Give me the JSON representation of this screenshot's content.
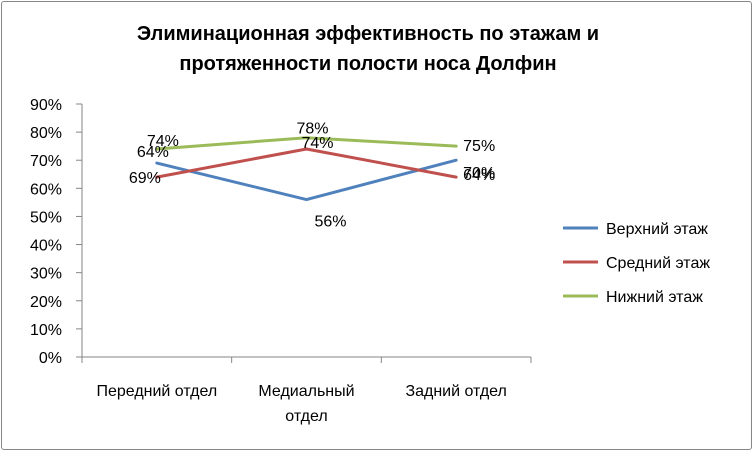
{
  "chart_data": {
    "type": "line",
    "title_lines": [
      "Элиминационная эффективность по этажам и",
      "протяженности полости носа Долфин"
    ],
    "categories": [
      [
        "Передний отдел"
      ],
      [
        "Медиальный",
        "отдел"
      ],
      [
        "Задний отдел"
      ]
    ],
    "y_ticks": [
      "0%",
      "10%",
      "20%",
      "30%",
      "40%",
      "50%",
      "60%",
      "70%",
      "80%",
      "90%"
    ],
    "ylim": [
      0,
      90
    ],
    "grid": false,
    "legend_position": "right",
    "series": [
      {
        "name": "Верхний этаж",
        "color": "#4F81BD",
        "values": [
          69,
          56,
          70
        ],
        "labels": [
          "69%",
          "56%",
          "70%"
        ]
      },
      {
        "name": "Средний этаж",
        "color": "#C0504D",
        "values": [
          64,
          74,
          64
        ],
        "labels": [
          "64%",
          "74%",
          "64%"
        ]
      },
      {
        "name": "Нижний этаж",
        "color": "#9BBB59",
        "values": [
          74,
          78,
          75
        ],
        "labels": [
          "74%",
          "78%",
          "75%"
        ]
      }
    ],
    "axis_color": "#868686"
  }
}
